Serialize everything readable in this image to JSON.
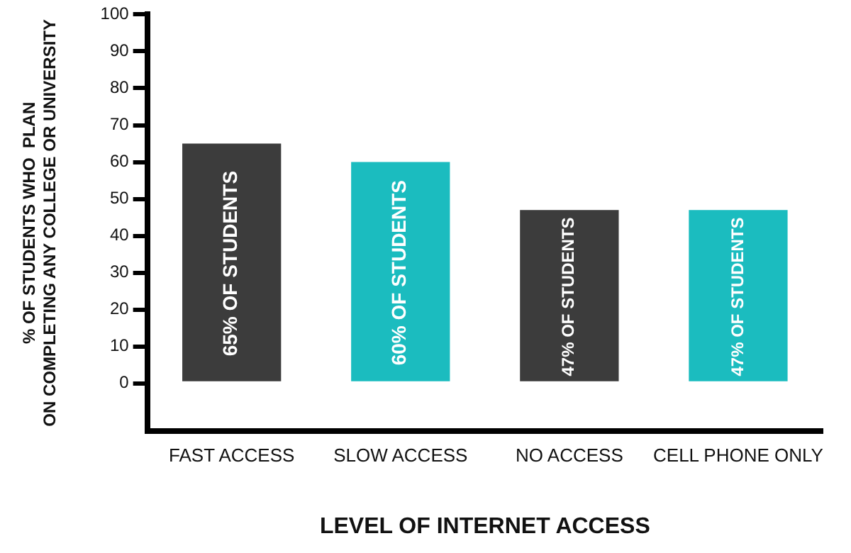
{
  "chart_data": {
    "type": "bar",
    "xlabel": "LEVEL OF INTERNET ACCESS",
    "ylabel": "% OF STUDENTS WHO  PLAN\nON COMPLETING ANY COLLEGE OR UNIVERSITY",
    "categories": [
      "FAST ACCESS",
      "SLOW ACCESS",
      "NO ACCESS",
      "CELL PHONE ONLY"
    ],
    "values": [
      65,
      60,
      47,
      47
    ],
    "colors": [
      "#3c3c3c",
      "#1bbcbf",
      "#3c3c3c",
      "#1bbcbf"
    ],
    "value_labels": [
      "65% OF STUDENTS",
      "60% OF STUDENTS",
      "47% OF STUDENTS",
      "47% OF STUDENTS"
    ],
    "ylim": [
      -13,
      100
    ],
    "yticks": [
      0,
      10,
      20,
      30,
      40,
      50,
      60,
      70,
      80,
      90,
      100
    ],
    "grid": false,
    "legend": false
  }
}
